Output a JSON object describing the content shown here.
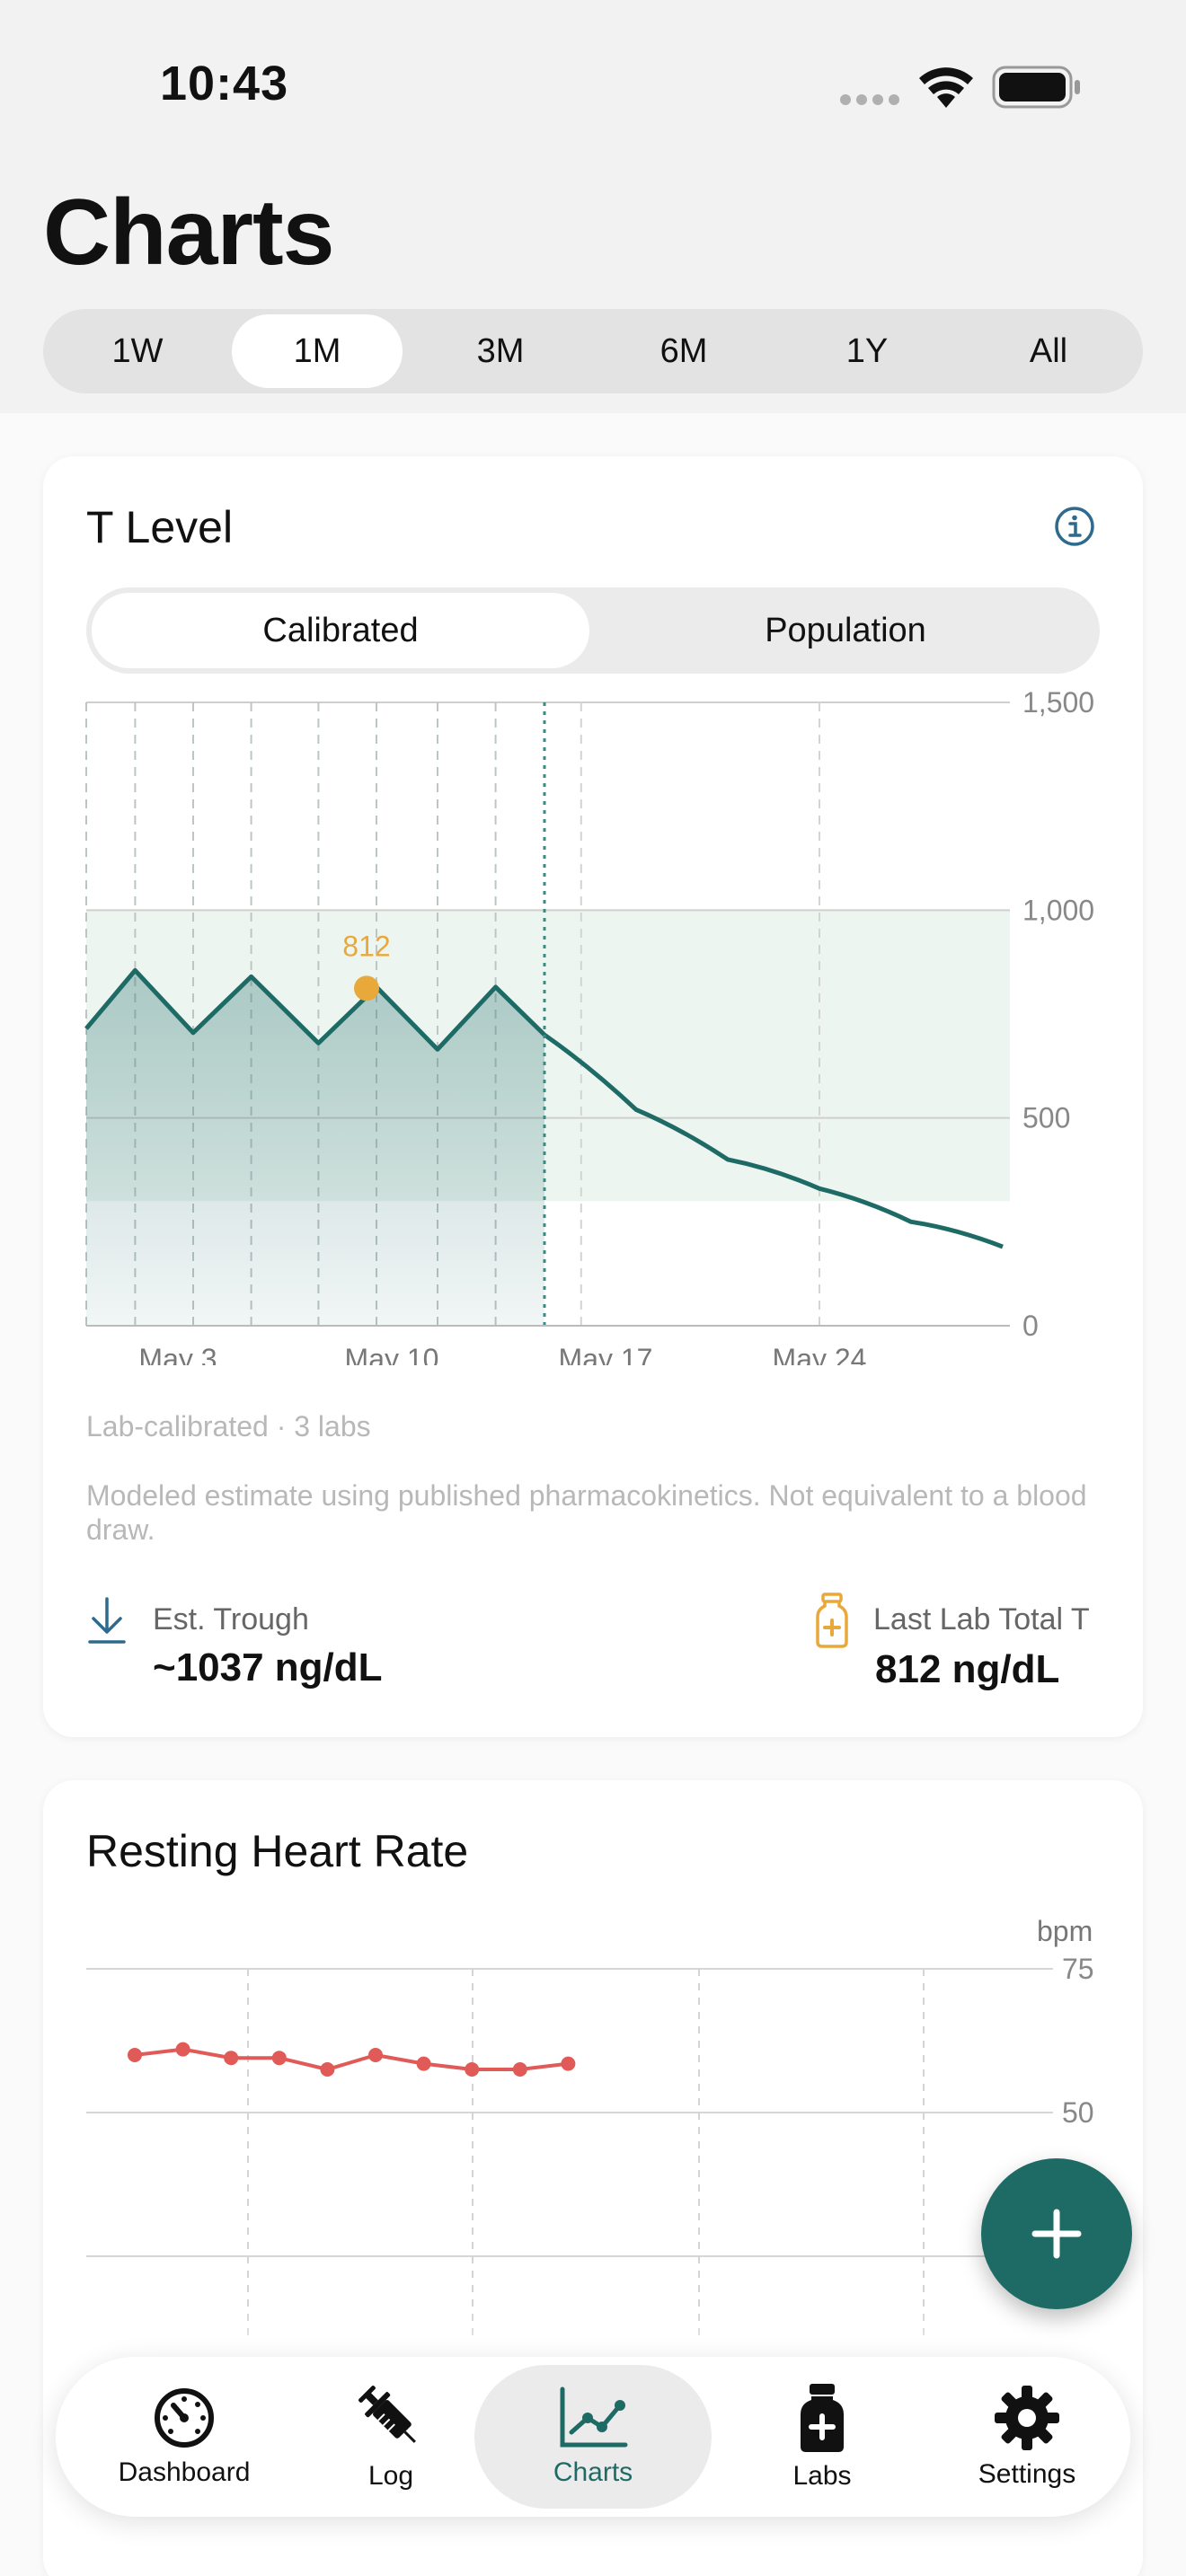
{
  "status_bar": {
    "time": "10:43"
  },
  "header": {
    "title": "Charts"
  },
  "range_tabs": [
    "1W",
    "1M",
    "3M",
    "6M",
    "1Y",
    "All"
  ],
  "range_selected": "1M",
  "t_level_card": {
    "title": "T Level",
    "mode_tabs": [
      "Calibrated",
      "Population"
    ],
    "mode_selected": "Calibrated",
    "caption": "Lab-calibrated · 3 labs",
    "disclaimer": "Modeled estimate using published pharmacokinetics. Not equivalent to a blood draw.",
    "trough_label": "Est. Trough",
    "trough_value": "~1037 ng/dL",
    "lab_label": "Last Lab Total T",
    "lab_value": "812 ng/dL"
  },
  "hr_card": {
    "title": "Resting Heart Rate",
    "unit": "bpm"
  },
  "chart_data": [
    {
      "type": "area",
      "title": "T Level",
      "ylim": [
        0,
        1500
      ],
      "y_ticks": [
        "1,500",
        "1,000",
        "500",
        "0"
      ],
      "x_ticks": [
        "May 3",
        "May 10",
        "May 17",
        "May 24"
      ],
      "reference_band": [
        300,
        1000
      ],
      "today": "May 15",
      "series": [
        {
          "x": [
            "Apr 30",
            "May 1.6",
            "May 3.5",
            "May 5.4",
            "May 7.6",
            "May 9.5",
            "May 11.5",
            "May 13.4",
            "May 15",
            "May 18",
            "May 21",
            "May 24",
            "May 27",
            "May 30"
          ],
          "values": [
            715,
            855,
            705,
            840,
            680,
            815,
            665,
            815,
            700,
            520,
            400,
            330,
            250,
            190
          ]
        }
      ],
      "lab_point": {
        "x": "May 9",
        "value": 812,
        "label": "812"
      }
    },
    {
      "type": "line",
      "title": "Resting Heart Rate",
      "ylabel": "bpm",
      "y_ticks": [
        "75",
        "50"
      ],
      "ylim": [
        25,
        75
      ],
      "series": [
        {
          "values": [
            60,
            61,
            59.5,
            59.5,
            57.5,
            60,
            58.5,
            57.5,
            57.5,
            58.5
          ]
        }
      ]
    }
  ]
}
